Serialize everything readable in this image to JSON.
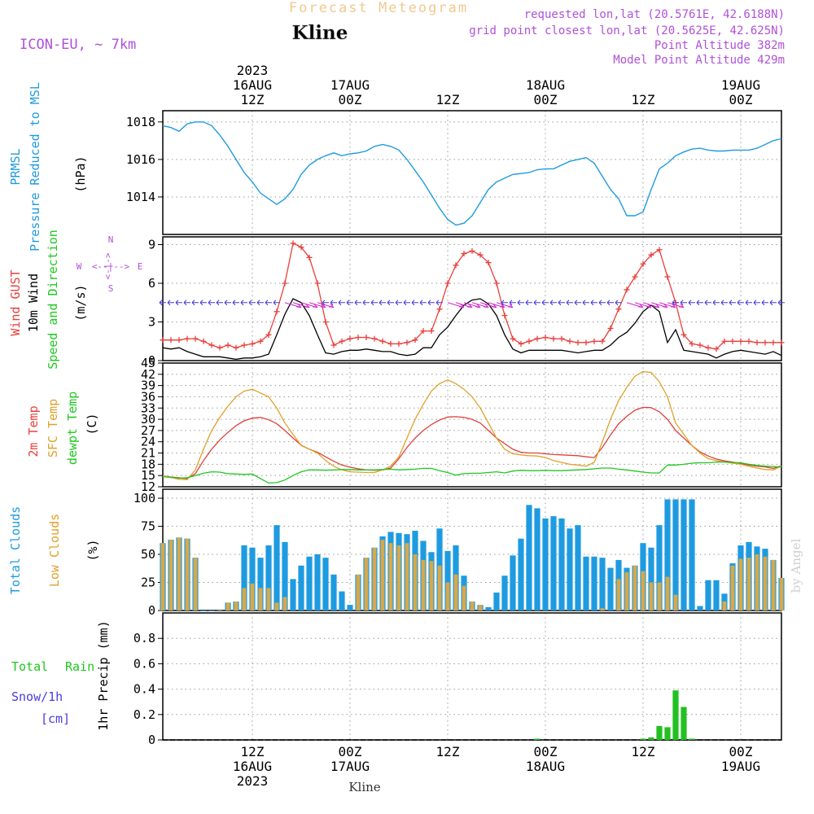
{
  "header": {
    "product": "Forecast Meteogram",
    "location": "Kline",
    "model": "ICON-EU, ~ 7km",
    "requested": "requested lon,lat (20.5761E, 42.6188N)",
    "grid": "grid point closest lon,lat (20.5625E, 42.625N)",
    "point_alt": "Point Altitude 382m",
    "model_alt": "Model Point Altitude 429m",
    "footer": "Kline",
    "credit": "by Angel"
  },
  "time_axis": {
    "top_ticks": [
      {
        "hour": 12,
        "lines": [
          "2023",
          "16AUG",
          "12Z"
        ]
      },
      {
        "hour": 24,
        "lines": [
          "17AUG",
          "00Z"
        ]
      },
      {
        "hour": 36,
        "lines": [
          "12Z"
        ]
      },
      {
        "hour": 48,
        "lines": [
          "18AUG",
          "00Z"
        ]
      },
      {
        "hour": 60,
        "lines": [
          "12Z"
        ]
      },
      {
        "hour": 72,
        "lines": [
          "19AUG",
          "00Z"
        ]
      }
    ],
    "bottom_ticks": [
      {
        "hour": 12,
        "lines": [
          "12Z",
          "16AUG",
          "2023"
        ]
      },
      {
        "hour": 24,
        "lines": [
          "00Z",
          "17AUG"
        ]
      },
      {
        "hour": 36,
        "lines": [
          "12Z"
        ]
      },
      {
        "hour": 48,
        "lines": [
          "00Z",
          "18AUG"
        ]
      },
      {
        "hour": 60,
        "lines": [
          "12Z"
        ]
      },
      {
        "hour": 72,
        "lines": [
          "00Z",
          "19AUG"
        ]
      }
    ]
  },
  "panel_labels": {
    "pressure": {
      "l1": "PRMSL",
      "l2": "Pressure Reduced to MSL",
      "unit": "(hPa)"
    },
    "wind": {
      "l1": "Wind GUST",
      "l2": "10m Wind",
      "l3": "Speed and Direction",
      "unit": "(m/s)"
    },
    "compass": {
      "n": "N",
      "s": "S",
      "w": "W",
      "e": "E",
      "ns": "<-|->",
      "we": "<--|-->"
    },
    "temp": {
      "l1": "2m Temp",
      "l2": "SFC Temp",
      "l3": "dewpt Temp",
      "unit": "(C)"
    },
    "cloud": {
      "l1": "Total Clouds",
      "l2": "Low Clouds",
      "unit": "(%)"
    },
    "precip": {
      "l1": "Total",
      "l2": "Rain",
      "l3": "Snow/1h",
      "l4": "[cm]",
      "unit": "1hr Precip (mm)"
    }
  },
  "colors": {
    "pressure": "#1e9be0",
    "gust": "#e8403c",
    "wind": "#000000",
    "arrows_easterly": "#4a3cdc",
    "arrows_westerly": "#d02ad0",
    "t2m": "#e0403c",
    "sfc": "#e0a02a",
    "dew": "#1ec81e",
    "total_cloud": "#1e9be0",
    "low_cloud": "#d8a84a",
    "rain": "#22c022",
    "label_purple": "#b050d8",
    "label_orange": "#f2c890"
  },
  "chart_data": [
    {
      "type": "line",
      "name": "pressure",
      "x_range": [
        1,
        77
      ],
      "ylim": [
        1012,
        1018.6
      ],
      "yticks": [
        1014,
        1016,
        1018
      ],
      "x": [
        1,
        2,
        3,
        4,
        5,
        6,
        7,
        8,
        9,
        10,
        11,
        12,
        13,
        14,
        15,
        16,
        17,
        18,
        19,
        20,
        21,
        22,
        23,
        24,
        25,
        26,
        27,
        28,
        29,
        30,
        31,
        32,
        33,
        34,
        35,
        36,
        37,
        38,
        39,
        40,
        41,
        42,
        43,
        44,
        45,
        46,
        47,
        48,
        49,
        50,
        51,
        52,
        53,
        54,
        55,
        56,
        57,
        58,
        59,
        60,
        61,
        62,
        63,
        64,
        65,
        66,
        67,
        68,
        69,
        70,
        71,
        72,
        73,
        74,
        75,
        76,
        77
      ],
      "values": [
        1017.8,
        1017.7,
        1017.5,
        1017.9,
        1018.0,
        1018.0,
        1017.8,
        1017.3,
        1016.7,
        1016.0,
        1015.3,
        1014.8,
        1014.2,
        1013.9,
        1013.6,
        1013.9,
        1014.4,
        1015.2,
        1015.7,
        1016.0,
        1016.2,
        1016.35,
        1016.2,
        1016.3,
        1016.35,
        1016.45,
        1016.7,
        1016.8,
        1016.7,
        1016.5,
        1016.0,
        1015.4,
        1014.8,
        1014.1,
        1013.4,
        1012.8,
        1012.5,
        1012.6,
        1013.0,
        1013.7,
        1014.4,
        1014.8,
        1015.0,
        1015.2,
        1015.25,
        1015.3,
        1015.45,
        1015.5,
        1015.5,
        1015.7,
        1015.9,
        1016.0,
        1016.1,
        1015.8,
        1015.1,
        1014.4,
        1013.9,
        1013.0,
        1013.0,
        1013.2,
        1014.4,
        1015.5,
        1015.8,
        1016.2,
        1016.4,
        1016.55,
        1016.6,
        1016.5,
        1016.45,
        1016.45,
        1016.5,
        1016.5,
        1016.5,
        1016.6,
        1016.8,
        1017.0,
        1017.1
      ]
    },
    {
      "type": "line",
      "name": "wind",
      "x_range": [
        1,
        77
      ],
      "ylim": [
        0,
        9.6
      ],
      "yticks": [
        0,
        3,
        6,
        9
      ],
      "x": [
        1,
        2,
        3,
        4,
        5,
        6,
        7,
        8,
        9,
        10,
        11,
        12,
        13,
        14,
        15,
        16,
        17,
        18,
        19,
        20,
        21,
        22,
        23,
        24,
        25,
        26,
        27,
        28,
        29,
        30,
        31,
        32,
        33,
        34,
        35,
        36,
        37,
        38,
        39,
        40,
        41,
        42,
        43,
        44,
        45,
        46,
        47,
        48,
        49,
        50,
        51,
        52,
        53,
        54,
        55,
        56,
        57,
        58,
        59,
        60,
        61,
        62,
        63,
        64,
        65,
        66,
        67,
        68,
        69,
        70,
        71,
        72,
        73,
        74,
        75,
        76,
        77
      ],
      "series": [
        {
          "key": "gust",
          "values": [
            1.6,
            1.6,
            1.6,
            1.7,
            1.7,
            1.5,
            1.2,
            1.0,
            1.2,
            1.0,
            1.2,
            1.3,
            1.5,
            2.0,
            3.8,
            6.0,
            9.1,
            8.8,
            8.0,
            6.0,
            3.0,
            1.2,
            1.5,
            1.7,
            1.8,
            1.8,
            1.7,
            1.5,
            1.3,
            1.3,
            1.4,
            1.6,
            2.3,
            2.3,
            4.0,
            6.0,
            7.4,
            8.3,
            8.5,
            8.2,
            7.6,
            6.0,
            3.5,
            1.7,
            1.3,
            1.5,
            1.7,
            1.8,
            1.7,
            1.7,
            1.5,
            1.4,
            1.4,
            1.5,
            1.5,
            2.5,
            4.0,
            5.5,
            6.5,
            7.5,
            8.2,
            8.6,
            6.5,
            4.5,
            2.0,
            1.3,
            1.2,
            1.0,
            0.9,
            1.5,
            1.5,
            1.5,
            1.5,
            1.4,
            1.4,
            1.4,
            1.4
          ]
        },
        {
          "key": "wind",
          "values": [
            1.0,
            0.9,
            1.0,
            0.7,
            0.5,
            0.3,
            0.3,
            0.3,
            0.2,
            0.1,
            0.2,
            0.2,
            0.3,
            0.5,
            2.0,
            3.6,
            4.8,
            4.5,
            3.5,
            2.0,
            0.6,
            0.5,
            0.7,
            0.8,
            0.8,
            0.9,
            0.8,
            0.7,
            0.7,
            0.5,
            0.4,
            0.5,
            1.0,
            1.0,
            2.0,
            2.6,
            3.5,
            4.3,
            4.7,
            4.8,
            4.4,
            3.5,
            2.0,
            0.9,
            0.6,
            0.8,
            0.8,
            0.8,
            0.8,
            0.8,
            0.7,
            0.6,
            0.7,
            0.8,
            0.8,
            1.2,
            1.8,
            2.2,
            2.9,
            3.8,
            4.3,
            3.8,
            1.4,
            2.4,
            0.8,
            0.7,
            0.6,
            0.5,
            0.2,
            0.5,
            0.7,
            0.8,
            0.7,
            0.6,
            0.5,
            0.7,
            0.4
          ]
        }
      ]
    },
    {
      "type": "line",
      "name": "temperature",
      "x_range": [
        1,
        77
      ],
      "ylim": [
        12,
        45
      ],
      "yticks": [
        12,
        15,
        18,
        21,
        24,
        27,
        30,
        33,
        36,
        39,
        42,
        45
      ],
      "x": [
        1,
        2,
        3,
        4,
        5,
        6,
        7,
        8,
        9,
        10,
        11,
        12,
        13,
        14,
        15,
        16,
        17,
        18,
        19,
        20,
        21,
        22,
        23,
        24,
        25,
        26,
        27,
        28,
        29,
        30,
        31,
        32,
        33,
        34,
        35,
        36,
        37,
        38,
        39,
        40,
        41,
        42,
        43,
        44,
        45,
        46,
        47,
        48,
        49,
        50,
        51,
        52,
        53,
        54,
        55,
        56,
        57,
        58,
        59,
        60,
        61,
        62,
        63,
        64,
        65,
        66,
        67,
        68,
        69,
        70,
        71,
        72,
        73,
        74,
        75,
        76,
        77
      ],
      "series": [
        {
          "key": "t2m",
          "values": [
            14.9,
            14.6,
            14.4,
            14.2,
            15.5,
            19.0,
            22.0,
            24.5,
            26.5,
            28.3,
            29.6,
            30.3,
            30.5,
            29.9,
            28.8,
            27.0,
            25.0,
            23.1,
            22.0,
            21.2,
            20.0,
            18.8,
            17.8,
            17.2,
            16.8,
            16.5,
            16.4,
            16.5,
            17.0,
            19.5,
            22.5,
            25.0,
            27.0,
            28.6,
            29.8,
            30.6,
            30.7,
            30.5,
            30.0,
            29.0,
            27.0,
            25.0,
            23.5,
            22.0,
            21.2,
            21.0,
            21.0,
            20.8,
            20.6,
            20.5,
            20.4,
            20.3,
            20.0,
            19.8,
            22.5,
            25.8,
            28.8,
            30.8,
            32.4,
            33.2,
            33.1,
            32.0,
            30.0,
            27.0,
            25.0,
            23.0,
            21.3,
            20.2,
            19.4,
            18.9,
            18.6,
            18.2,
            17.8,
            17.5,
            17.3,
            16.9,
            17.6
          ]
        },
        {
          "key": "sfc",
          "values": [
            14.9,
            14.5,
            14.0,
            13.9,
            16.5,
            22.0,
            27.0,
            30.5,
            33.5,
            36.0,
            37.5,
            38.0,
            37.0,
            36.0,
            33.0,
            29.0,
            26.0,
            23.0,
            22.0,
            21.0,
            19.0,
            17.5,
            16.5,
            16.0,
            15.9,
            15.8,
            15.8,
            16.5,
            17.5,
            20.0,
            25.0,
            30.0,
            34.0,
            37.5,
            39.5,
            40.5,
            39.5,
            38.0,
            36.0,
            33.0,
            29.0,
            25.0,
            22.0,
            20.8,
            20.5,
            20.3,
            20.2,
            19.8,
            19.0,
            18.5,
            18.0,
            17.8,
            17.5,
            18.5,
            24.0,
            30.0,
            35.0,
            38.5,
            41.5,
            42.7,
            42.5,
            40.0,
            36.0,
            29.0,
            26.0,
            23.0,
            21.0,
            19.5,
            19.0,
            18.6,
            18.3,
            18.0,
            17.5,
            17.0,
            16.6,
            16.5,
            17.5
          ]
        },
        {
          "key": "dew",
          "values": [
            14.7,
            14.5,
            14.3,
            14.4,
            15.0,
            15.6,
            16.0,
            15.9,
            15.5,
            15.4,
            15.3,
            15.4,
            14.2,
            13.0,
            13.1,
            13.8,
            15.0,
            16.0,
            16.5,
            16.5,
            16.4,
            16.5,
            16.6,
            16.6,
            16.5,
            16.5,
            16.5,
            16.6,
            16.7,
            16.5,
            16.6,
            16.7,
            16.9,
            16.9,
            16.3,
            15.8,
            15.1,
            15.5,
            15.6,
            15.6,
            15.8,
            16.0,
            15.7,
            16.2,
            16.4,
            16.3,
            16.3,
            16.4,
            16.3,
            16.3,
            16.4,
            16.5,
            16.6,
            16.8,
            17.0,
            17.0,
            16.7,
            16.5,
            16.2,
            15.9,
            15.7,
            15.7,
            17.8,
            17.8,
            18.0,
            18.3,
            18.4,
            18.4,
            18.6,
            18.6,
            18.5,
            18.4,
            18.0,
            17.7,
            17.5,
            17.4,
            17.3
          ]
        }
      ]
    },
    {
      "type": "bar",
      "name": "clouds",
      "x_range": [
        1,
        77
      ],
      "ylim": [
        0,
        108
      ],
      "yticks": [
        0,
        25,
        50,
        75,
        100
      ],
      "x": [
        1,
        2,
        3,
        4,
        5,
        6,
        7,
        8,
        9,
        10,
        11,
        12,
        13,
        14,
        15,
        16,
        17,
        18,
        19,
        20,
        21,
        22,
        23,
        24,
        25,
        26,
        27,
        28,
        29,
        30,
        31,
        32,
        33,
        34,
        35,
        36,
        37,
        38,
        39,
        40,
        41,
        42,
        43,
        44,
        45,
        46,
        47,
        48,
        49,
        50,
        51,
        52,
        53,
        54,
        55,
        56,
        57,
        58,
        59,
        60,
        61,
        62,
        63,
        64,
        65,
        66,
        67,
        68,
        69,
        70,
        71,
        72,
        73,
        74,
        75,
        76,
        77
      ],
      "series": [
        {
          "key": "total",
          "values": [
            60,
            63,
            65,
            64,
            47,
            0,
            0,
            1,
            7,
            8,
            58,
            56,
            47,
            58,
            76,
            61,
            28,
            40,
            48,
            50,
            47,
            32,
            17,
            5,
            32,
            47,
            56,
            66,
            70,
            69,
            68,
            71,
            62,
            52,
            73,
            53,
            58,
            31,
            8,
            5,
            3,
            16,
            31,
            49,
            64,
            94,
            91,
            82,
            84,
            82,
            73,
            76,
            48,
            48,
            47,
            38,
            45,
            38,
            40,
            60,
            56,
            76,
            99,
            99,
            99,
            99,
            4,
            27,
            27,
            15,
            42,
            58,
            61,
            57,
            55,
            45,
            29
          ]
        },
        {
          "key": "low",
          "values": [
            60,
            63,
            65,
            64,
            47,
            0,
            0,
            1,
            7,
            8,
            20,
            24,
            20,
            20,
            7,
            12,
            0,
            0,
            0,
            0,
            0,
            0,
            0,
            0,
            32,
            47,
            56,
            63,
            60,
            58,
            60,
            50,
            45,
            44,
            40,
            25,
            32,
            22,
            8,
            5,
            0,
            0,
            0,
            0,
            0,
            0,
            0,
            0,
            0,
            0,
            0,
            0,
            0,
            0,
            2,
            0,
            28,
            34,
            40,
            35,
            25,
            25,
            30,
            14,
            0,
            0,
            0,
            0,
            0,
            8,
            40,
            46,
            47,
            50,
            48,
            45,
            29
          ]
        }
      ]
    },
    {
      "type": "bar",
      "name": "precipitation",
      "x_range": [
        1,
        77
      ],
      "ylim": [
        0,
        1.0
      ],
      "yticks": [
        0,
        0.2,
        0.4,
        0.6,
        0.8
      ],
      "x": [
        47,
        60,
        61,
        62,
        63,
        64,
        65,
        66
      ],
      "values": [
        0.01,
        0.01,
        0.02,
        0.11,
        0.1,
        0.39,
        0.26,
        0.01
      ]
    }
  ]
}
